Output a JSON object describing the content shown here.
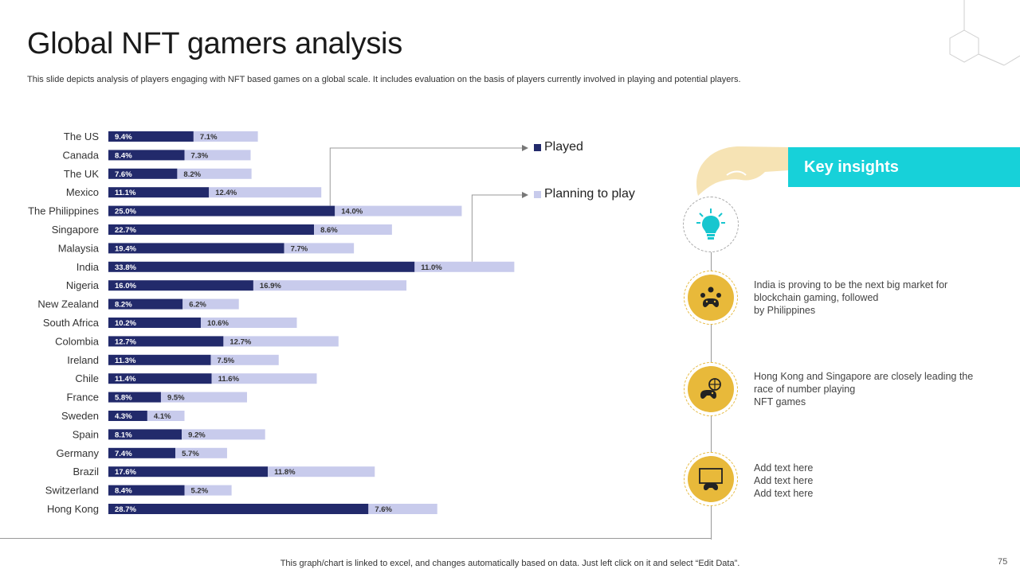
{
  "title": "Global NFT gamers analysis",
  "subtitle": "This slide depicts analysis of players engaging with NFT based games on a global scale. It includes evaluation on the basis of players currently involved in playing and potential players.",
  "chart_data": {
    "type": "bar",
    "orientation": "horizontal",
    "stacked": true,
    "categories": [
      "The US",
      "Canada",
      "The UK",
      "Mexico",
      "The Philippines",
      "Singapore",
      "Malaysia",
      "India",
      "Nigeria",
      "New Zealand",
      "South Africa",
      "Colombia",
      "Ireland",
      "Chile",
      "France",
      "Sweden",
      "Spain",
      "Germany",
      "Brazil",
      "Switzerland",
      "Hong Kong"
    ],
    "series": [
      {
        "name": "Played",
        "color": "#222a6b",
        "values": [
          9.4,
          8.4,
          7.6,
          11.1,
          25.0,
          22.7,
          19.4,
          33.8,
          16.0,
          8.2,
          10.2,
          12.7,
          11.3,
          11.4,
          5.8,
          4.3,
          8.1,
          7.4,
          17.6,
          8.4,
          28.7
        ]
      },
      {
        "name": "Planning to play",
        "color": "#c8cbec",
        "values": [
          7.1,
          7.3,
          8.2,
          12.4,
          14.0,
          8.6,
          7.7,
          11.0,
          16.9,
          6.2,
          10.6,
          12.7,
          7.5,
          11.6,
          9.5,
          4.1,
          9.2,
          5.7,
          11.8,
          5.2,
          7.6
        ]
      }
    ],
    "value_format": "%",
    "legend": "right"
  },
  "legend": {
    "played": "Played",
    "planning": "Planning to play"
  },
  "panel": {
    "header": "Key insights",
    "insights": [
      {
        "lines": [
          "India is proving to be the next big market for",
          "blockchain gaming, followed",
          "by Philippines"
        ]
      },
      {
        "lines": [
          "Hong Kong and Singapore are closely leading the",
          "race of number playing",
          "NFT games"
        ]
      },
      {
        "lines": [
          "Add text here",
          "Add text here",
          "Add text here"
        ]
      }
    ]
  },
  "footer": "This graph/chart is linked to excel, and changes automatically based on data. Just left click on it and select “Edit Data”.",
  "page_number": "75",
  "icons": [
    "lightbulb-icon",
    "gamers-network-icon",
    "gamepad-globe-icon",
    "gamepad-screen-icon",
    "hand-icon"
  ]
}
